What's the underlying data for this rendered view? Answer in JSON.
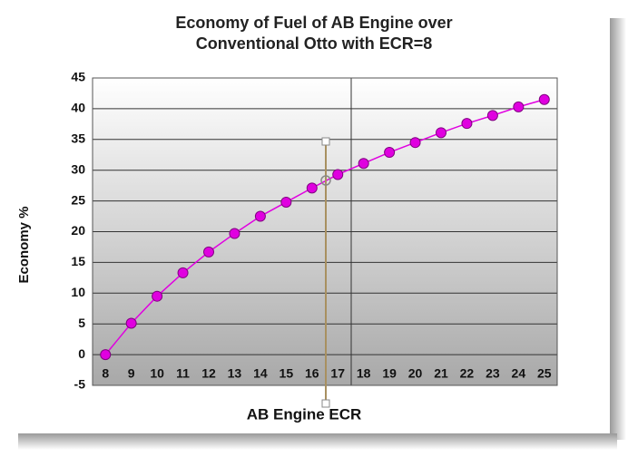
{
  "chart_data": {
    "type": "line",
    "title": "Economy of Fuel of AB Engine over Conventional Otto with ECR=8",
    "x_label": "AB Engine ECR",
    "y_label": "Economy %",
    "categories": [
      "8",
      "9",
      "10",
      "11",
      "12",
      "13",
      "14",
      "15",
      "16",
      "17",
      "18",
      "19",
      "20",
      "21",
      "22",
      "23",
      "24",
      "25"
    ],
    "values": [
      0,
      5.1,
      9.5,
      13.3,
      16.7,
      19.7,
      22.5,
      24.8,
      27.1,
      29.3,
      31.1,
      32.9,
      34.5,
      36.1,
      37.6,
      38.9,
      40.3,
      41.5
    ],
    "color": "#e000e0",
    "ylim": [
      -5,
      45
    ],
    "yticks": [
      -5,
      0,
      5,
      10,
      15,
      20,
      25,
      30,
      35,
      40,
      45
    ],
    "grid": true
  }
}
